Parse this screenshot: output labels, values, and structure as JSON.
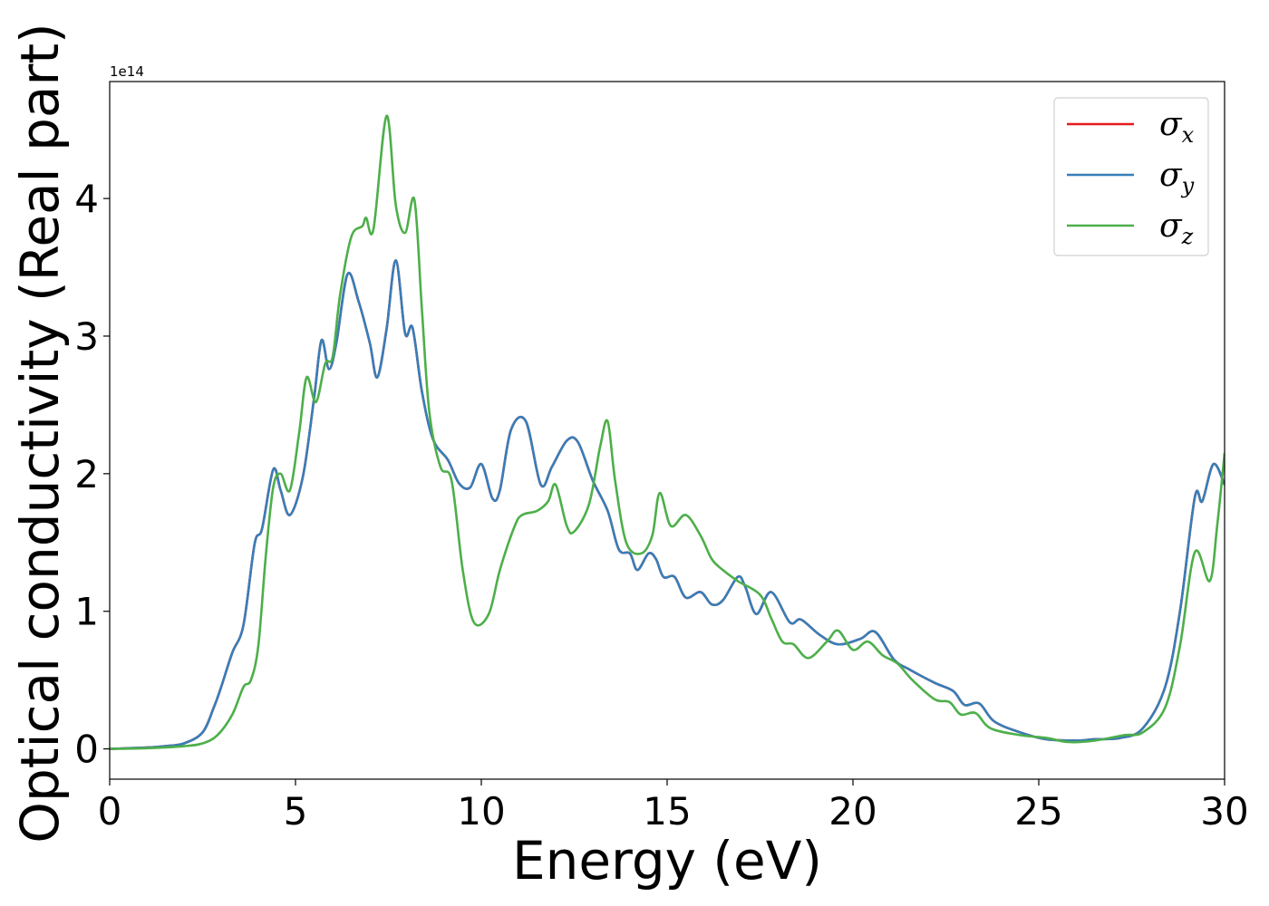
{
  "chart_data": {
    "type": "line",
    "title": "",
    "xlabel": "Energy (eV)",
    "ylabel": "Optical conductivity (Real part)",
    "y_offset_label": "1e14",
    "xlim": [
      0,
      30
    ],
    "ylim": [
      -0.22,
      4.85
    ],
    "x_ticks": [
      0,
      5,
      10,
      15,
      20,
      25,
      30
    ],
    "y_ticks": [
      0,
      1,
      2,
      3,
      4
    ],
    "grid": false,
    "legend_position": "top-right",
    "series": [
      {
        "name": "σx",
        "symbol": "σ",
        "subscript": "x",
        "color": "#e41a1c",
        "points": [
          [
            0,
            0
          ],
          [
            1,
            0.01
          ],
          [
            1.5,
            0.02
          ],
          [
            2,
            0.04
          ],
          [
            2.5,
            0.12
          ],
          [
            2.8,
            0.3
          ],
          [
            3,
            0.45
          ],
          [
            3.3,
            0.7
          ],
          [
            3.6,
            0.9
          ],
          [
            3.9,
            1.49
          ],
          [
            4.1,
            1.6
          ],
          [
            4.4,
            2.03
          ],
          [
            4.6,
            1.88
          ],
          [
            4.85,
            1.7
          ],
          [
            5.2,
            1.98
          ],
          [
            5.5,
            2.55
          ],
          [
            5.7,
            2.97
          ],
          [
            5.9,
            2.76
          ],
          [
            6.1,
            2.95
          ],
          [
            6.4,
            3.45
          ],
          [
            6.7,
            3.25
          ],
          [
            7,
            2.95
          ],
          [
            7.2,
            2.7
          ],
          [
            7.45,
            3.05
          ],
          [
            7.7,
            3.55
          ],
          [
            7.95,
            3.02
          ],
          [
            8.15,
            3.06
          ],
          [
            8.4,
            2.6
          ],
          [
            8.7,
            2.25
          ],
          [
            9.1,
            2.1
          ],
          [
            9.4,
            1.93
          ],
          [
            9.7,
            1.9
          ],
          [
            10,
            2.07
          ],
          [
            10.3,
            1.82
          ],
          [
            10.5,
            1.88
          ],
          [
            10.8,
            2.32
          ],
          [
            11.2,
            2.38
          ],
          [
            11.6,
            1.92
          ],
          [
            11.9,
            2.05
          ],
          [
            12.3,
            2.24
          ],
          [
            12.6,
            2.23
          ],
          [
            13,
            1.95
          ],
          [
            13.4,
            1.73
          ],
          [
            13.7,
            1.45
          ],
          [
            14,
            1.42
          ],
          [
            14.2,
            1.3
          ],
          [
            14.5,
            1.42
          ],
          [
            14.7,
            1.38
          ],
          [
            14.9,
            1.25
          ],
          [
            15.2,
            1.25
          ],
          [
            15.5,
            1.1
          ],
          [
            15.9,
            1.14
          ],
          [
            16.2,
            1.05
          ],
          [
            16.5,
            1.08
          ],
          [
            16.9,
            1.25
          ],
          [
            17.1,
            1.18
          ],
          [
            17.4,
            0.98
          ],
          [
            17.8,
            1.14
          ],
          [
            18.3,
            0.92
          ],
          [
            18.6,
            0.94
          ],
          [
            19.1,
            0.83
          ],
          [
            19.6,
            0.76
          ],
          [
            20.2,
            0.8
          ],
          [
            20.6,
            0.85
          ],
          [
            21.1,
            0.65
          ],
          [
            21.5,
            0.58
          ],
          [
            22.2,
            0.48
          ],
          [
            22.7,
            0.42
          ],
          [
            23,
            0.32
          ],
          [
            23.4,
            0.33
          ],
          [
            23.8,
            0.2
          ],
          [
            24.5,
            0.12
          ],
          [
            25.2,
            0.07
          ],
          [
            26,
            0.06
          ],
          [
            26.5,
            0.07
          ],
          [
            27.2,
            0.08
          ],
          [
            27.8,
            0.15
          ],
          [
            28.4,
            0.45
          ],
          [
            28.8,
            1.0
          ],
          [
            29.2,
            1.83
          ],
          [
            29.4,
            1.8
          ],
          [
            29.7,
            2.07
          ],
          [
            30,
            1.92
          ]
        ]
      },
      {
        "name": "σy",
        "symbol": "σ",
        "subscript": "y",
        "color": "#377eb8",
        "points": [
          [
            0,
            0
          ],
          [
            1,
            0.01
          ],
          [
            1.5,
            0.02
          ],
          [
            2,
            0.04
          ],
          [
            2.5,
            0.12
          ],
          [
            2.8,
            0.3
          ],
          [
            3,
            0.45
          ],
          [
            3.3,
            0.7
          ],
          [
            3.6,
            0.9
          ],
          [
            3.9,
            1.49
          ],
          [
            4.1,
            1.6
          ],
          [
            4.4,
            2.03
          ],
          [
            4.6,
            1.88
          ],
          [
            4.85,
            1.7
          ],
          [
            5.2,
            1.98
          ],
          [
            5.5,
            2.55
          ],
          [
            5.7,
            2.97
          ],
          [
            5.9,
            2.76
          ],
          [
            6.1,
            2.95
          ],
          [
            6.4,
            3.45
          ],
          [
            6.7,
            3.25
          ],
          [
            7,
            2.95
          ],
          [
            7.2,
            2.7
          ],
          [
            7.45,
            3.05
          ],
          [
            7.7,
            3.55
          ],
          [
            7.95,
            3.02
          ],
          [
            8.15,
            3.06
          ],
          [
            8.4,
            2.6
          ],
          [
            8.7,
            2.25
          ],
          [
            9.1,
            2.1
          ],
          [
            9.4,
            1.93
          ],
          [
            9.7,
            1.9
          ],
          [
            10,
            2.07
          ],
          [
            10.3,
            1.82
          ],
          [
            10.5,
            1.88
          ],
          [
            10.8,
            2.32
          ],
          [
            11.2,
            2.38
          ],
          [
            11.6,
            1.92
          ],
          [
            11.9,
            2.05
          ],
          [
            12.3,
            2.24
          ],
          [
            12.6,
            2.23
          ],
          [
            13,
            1.95
          ],
          [
            13.4,
            1.73
          ],
          [
            13.7,
            1.45
          ],
          [
            14,
            1.42
          ],
          [
            14.2,
            1.3
          ],
          [
            14.5,
            1.42
          ],
          [
            14.7,
            1.38
          ],
          [
            14.9,
            1.25
          ],
          [
            15.2,
            1.25
          ],
          [
            15.5,
            1.1
          ],
          [
            15.9,
            1.14
          ],
          [
            16.2,
            1.05
          ],
          [
            16.5,
            1.08
          ],
          [
            16.9,
            1.25
          ],
          [
            17.1,
            1.18
          ],
          [
            17.4,
            0.98
          ],
          [
            17.8,
            1.14
          ],
          [
            18.3,
            0.92
          ],
          [
            18.6,
            0.94
          ],
          [
            19.1,
            0.83
          ],
          [
            19.6,
            0.76
          ],
          [
            20.2,
            0.8
          ],
          [
            20.6,
            0.85
          ],
          [
            21.1,
            0.65
          ],
          [
            21.5,
            0.58
          ],
          [
            22.2,
            0.48
          ],
          [
            22.7,
            0.42
          ],
          [
            23,
            0.32
          ],
          [
            23.4,
            0.33
          ],
          [
            23.8,
            0.2
          ],
          [
            24.5,
            0.12
          ],
          [
            25.2,
            0.07
          ],
          [
            26,
            0.06
          ],
          [
            26.5,
            0.07
          ],
          [
            27.2,
            0.08
          ],
          [
            27.8,
            0.15
          ],
          [
            28.4,
            0.45
          ],
          [
            28.8,
            1.0
          ],
          [
            29.2,
            1.83
          ],
          [
            29.4,
            1.8
          ],
          [
            29.7,
            2.07
          ],
          [
            30,
            1.92
          ]
        ]
      },
      {
        "name": "σz",
        "symbol": "σ",
        "subscript": "z",
        "color": "#4daf4a",
        "points": [
          [
            0,
            0
          ],
          [
            1,
            0.005
          ],
          [
            2,
            0.02
          ],
          [
            2.5,
            0.04
          ],
          [
            2.9,
            0.1
          ],
          [
            3.3,
            0.25
          ],
          [
            3.6,
            0.45
          ],
          [
            3.8,
            0.5
          ],
          [
            4.0,
            0.75
          ],
          [
            4.2,
            1.4
          ],
          [
            4.4,
            1.9
          ],
          [
            4.6,
            2.0
          ],
          [
            4.85,
            1.88
          ],
          [
            5.1,
            2.3
          ],
          [
            5.3,
            2.7
          ],
          [
            5.55,
            2.52
          ],
          [
            5.8,
            2.8
          ],
          [
            6.0,
            2.85
          ],
          [
            6.2,
            3.3
          ],
          [
            6.5,
            3.72
          ],
          [
            6.8,
            3.8
          ],
          [
            6.9,
            3.86
          ],
          [
            7.1,
            3.78
          ],
          [
            7.45,
            4.6
          ],
          [
            7.7,
            3.95
          ],
          [
            7.95,
            3.75
          ],
          [
            8.2,
            3.99
          ],
          [
            8.4,
            3.2
          ],
          [
            8.6,
            2.45
          ],
          [
            8.9,
            2.05
          ],
          [
            9.2,
            1.95
          ],
          [
            9.5,
            1.3
          ],
          [
            9.8,
            0.92
          ],
          [
            10.2,
            0.98
          ],
          [
            10.5,
            1.3
          ],
          [
            10.9,
            1.62
          ],
          [
            11.1,
            1.7
          ],
          [
            11.5,
            1.73
          ],
          [
            11.8,
            1.8
          ],
          [
            12.0,
            1.92
          ],
          [
            12.3,
            1.62
          ],
          [
            12.5,
            1.58
          ],
          [
            12.9,
            1.78
          ],
          [
            13.2,
            2.2
          ],
          [
            13.4,
            2.38
          ],
          [
            13.6,
            1.95
          ],
          [
            13.9,
            1.5
          ],
          [
            14.3,
            1.42
          ],
          [
            14.6,
            1.55
          ],
          [
            14.8,
            1.86
          ],
          [
            15.1,
            1.62
          ],
          [
            15.5,
            1.7
          ],
          [
            15.9,
            1.55
          ],
          [
            16.2,
            1.38
          ],
          [
            16.5,
            1.3
          ],
          [
            16.9,
            1.22
          ],
          [
            17.5,
            1.12
          ],
          [
            17.8,
            0.95
          ],
          [
            18.1,
            0.78
          ],
          [
            18.4,
            0.76
          ],
          [
            18.8,
            0.66
          ],
          [
            19.3,
            0.78
          ],
          [
            19.6,
            0.86
          ],
          [
            20.0,
            0.72
          ],
          [
            20.4,
            0.78
          ],
          [
            20.8,
            0.68
          ],
          [
            21.2,
            0.62
          ],
          [
            21.6,
            0.5
          ],
          [
            22.2,
            0.36
          ],
          [
            22.6,
            0.34
          ],
          [
            22.9,
            0.25
          ],
          [
            23.3,
            0.26
          ],
          [
            23.7,
            0.15
          ],
          [
            24.5,
            0.1
          ],
          [
            25.2,
            0.08
          ],
          [
            25.8,
            0.05
          ],
          [
            26.5,
            0.06
          ],
          [
            27.3,
            0.1
          ],
          [
            27.8,
            0.12
          ],
          [
            28.4,
            0.3
          ],
          [
            28.8,
            0.75
          ],
          [
            29.2,
            1.43
          ],
          [
            29.6,
            1.22
          ],
          [
            29.8,
            1.62
          ],
          [
            30,
            2.15
          ]
        ]
      }
    ]
  }
}
